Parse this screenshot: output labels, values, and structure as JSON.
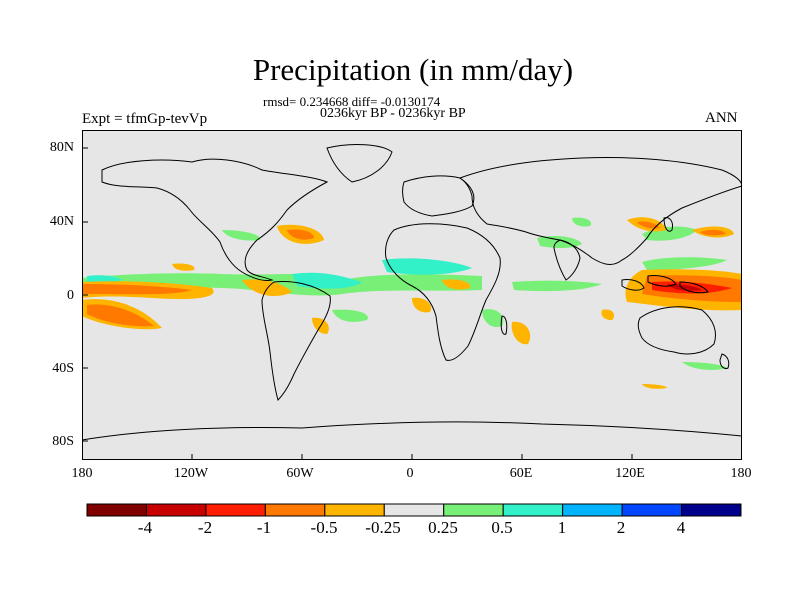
{
  "title": "Precipitation (in mm/day)",
  "stats_line": "rmsd= 0.234668 diff= -0.0130174",
  "period_line": "0236kyr BP - 0236kyr BP",
  "experiment": "Expt = tfmGp-tevVp",
  "season": "ANN",
  "lat_labels": [
    "80N",
    "40N",
    "0",
    "40S",
    "80S"
  ],
  "lon_labels": [
    "180",
    "120W",
    "60W",
    "0",
    "60E",
    "120E",
    "180"
  ],
  "colorbar": {
    "labels": [
      "-4",
      "-2",
      "-1",
      "-0.5",
      "-0.25",
      "0.25",
      "0.5",
      "1",
      "2",
      "4"
    ],
    "colors": [
      "#800000",
      "#c80000",
      "#ff1e00",
      "#ff7800",
      "#ffb400",
      "#e6e6e6",
      "#78f078",
      "#32f0c8",
      "#00b4ff",
      "#0046ff",
      "#00008c"
    ]
  },
  "map": {
    "background_color": "#e6e6e6",
    "lat_range": [
      -90,
      90
    ],
    "lon_range": [
      -180,
      180
    ]
  }
}
